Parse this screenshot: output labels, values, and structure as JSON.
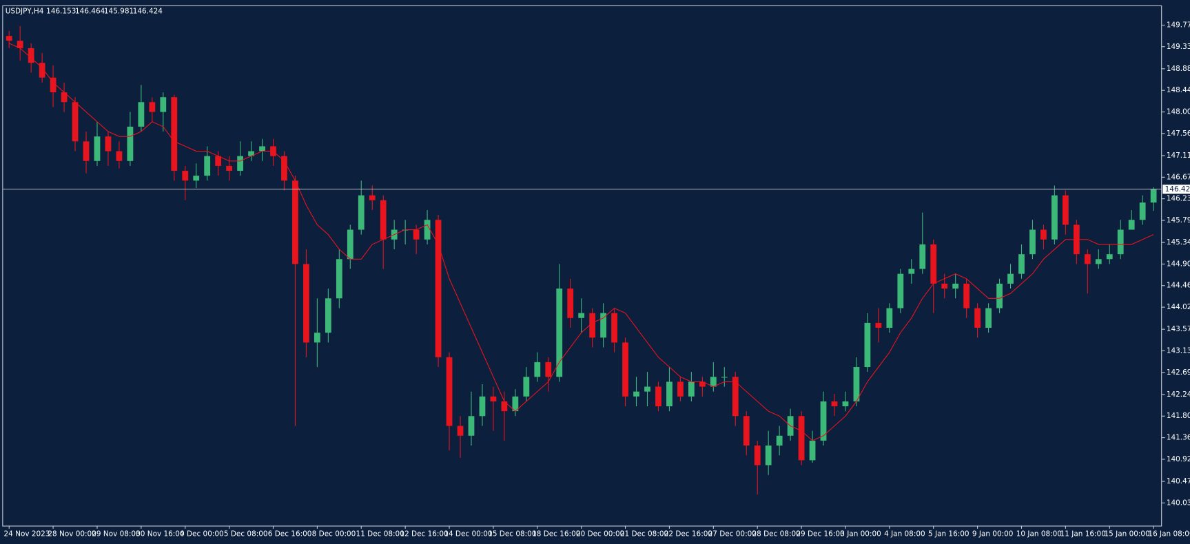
{
  "chart_data": {
    "type": "candlestick",
    "title": "USDJPY,H4",
    "categories": [
      "24 Nov 2023",
      null,
      null,
      null,
      "28 Nov 00:00",
      null,
      null,
      null,
      "29 Nov 08:00",
      null,
      null,
      null,
      "30 Nov 16:00",
      null,
      null,
      null,
      "4 Dec 00:00",
      null,
      null,
      null,
      "5 Dec 08:00",
      null,
      null,
      null,
      "6 Dec 16:00",
      null,
      null,
      null,
      "8 Dec 00:00",
      null,
      null,
      null,
      "11 Dec 08:00",
      null,
      null,
      null,
      "12 Dec 16:00",
      null,
      null,
      null,
      "14 Dec 00:00",
      null,
      null,
      null,
      "15 Dec 08:00",
      null,
      null,
      null,
      "18 Dec 16:00",
      null,
      null,
      null,
      "20 Dec 00:00",
      null,
      null,
      null,
      "21 Dec 08:00",
      null,
      null,
      null,
      "22 Dec 16:00",
      null,
      null,
      null,
      "27 Dec 00:00",
      null,
      null,
      null,
      "28 Dec 08:00",
      null,
      null,
      null,
      "29 Dec 16:00",
      null,
      null,
      null,
      "3 Jan 00:00",
      null,
      null,
      null,
      "4 Jan 08:00",
      null,
      null,
      null,
      "5 Jan 16:00",
      null,
      null,
      null,
      "9 Jan 00:00",
      null,
      null,
      null,
      "10 Jan 08:00",
      null,
      null,
      null,
      "11 Jan 16:00",
      null,
      null,
      null,
      "15 Jan 00:00",
      null,
      null,
      null,
      "16 Jan 08:00"
    ],
    "open": [
      149.55,
      149.45,
      149.3,
      149.0,
      148.7,
      148.4,
      148.2,
      147.4,
      147.0,
      147.5,
      147.2,
      147.0,
      147.7,
      148.2,
      148.0,
      148.3,
      146.8,
      146.6,
      146.7,
      147.1,
      146.9,
      146.8,
      147.1,
      147.2,
      147.3,
      147.1,
      146.6,
      144.9,
      143.3,
      143.5,
      144.2,
      145.0,
      145.6,
      146.3,
      146.2,
      145.4,
      145.6,
      145.6,
      145.4,
      145.8,
      143.0,
      141.6,
      141.4,
      141.8,
      142.2,
      142.1,
      141.9,
      142.2,
      142.6,
      142.9,
      142.6,
      144.4,
      143.8,
      143.9,
      143.4,
      143.9,
      143.3,
      142.2,
      142.3,
      142.4,
      142.0,
      142.5,
      142.2,
      142.5,
      142.4,
      142.6,
      142.6,
      141.8,
      141.2,
      140.8,
      141.2,
      141.4,
      141.8,
      140.9,
      141.3,
      142.1,
      142.0,
      142.1,
      142.8,
      143.7,
      143.6,
      144.0,
      144.7,
      144.8,
      145.3,
      144.5,
      144.4,
      144.5,
      144.0,
      143.6,
      144.0,
      144.5,
      144.7,
      145.1,
      145.6,
      145.4,
      146.3,
      145.7,
      145.1,
      144.9,
      145.0,
      145.1,
      145.6,
      145.8,
      146.153
    ],
    "high": [
      149.65,
      149.75,
      149.4,
      149.2,
      148.95,
      148.6,
      148.3,
      147.6,
      147.8,
      147.6,
      147.4,
      148.0,
      148.55,
      148.3,
      148.4,
      148.35,
      146.9,
      146.95,
      147.3,
      147.2,
      147.1,
      147.4,
      147.4,
      147.45,
      147.45,
      147.2,
      146.7,
      145.2,
      144.2,
      144.4,
      145.2,
      145.7,
      146.6,
      146.5,
      146.3,
      145.8,
      145.8,
      145.7,
      146.0,
      145.9,
      143.1,
      141.8,
      142.3,
      142.45,
      142.4,
      142.3,
      142.35,
      142.8,
      143.1,
      143.0,
      144.9,
      144.6,
      144.2,
      144.0,
      144.1,
      144.0,
      143.4,
      142.6,
      142.7,
      142.5,
      142.8,
      142.6,
      142.7,
      142.6,
      142.9,
      142.8,
      142.7,
      141.9,
      141.3,
      141.5,
      141.6,
      141.95,
      141.9,
      141.5,
      142.3,
      142.25,
      142.3,
      143.0,
      143.9,
      144.0,
      144.1,
      144.8,
      145.0,
      145.95,
      145.4,
      144.7,
      144.7,
      144.6,
      144.1,
      144.1,
      144.6,
      144.9,
      145.3,
      145.8,
      145.7,
      146.5,
      146.4,
      145.8,
      145.2,
      145.2,
      145.3,
      145.8,
      146.0,
      146.3,
      146.464
    ],
    "low": [
      149.3,
      149.05,
      148.8,
      148.6,
      148.1,
      148.0,
      147.2,
      146.75,
      146.9,
      146.9,
      146.85,
      146.9,
      147.6,
      147.8,
      147.6,
      146.6,
      146.2,
      146.45,
      146.6,
      146.7,
      146.6,
      146.7,
      147.0,
      147.0,
      146.9,
      146.4,
      141.6,
      143.0,
      142.8,
      143.3,
      144.0,
      144.8,
      145.5,
      146.0,
      144.8,
      145.2,
      145.3,
      145.1,
      145.3,
      142.8,
      141.1,
      140.95,
      141.2,
      141.6,
      141.5,
      141.3,
      141.8,
      142.1,
      142.5,
      142.3,
      142.5,
      143.6,
      143.5,
      143.2,
      143.2,
      143.1,
      142.0,
      142.0,
      142.0,
      141.9,
      141.9,
      142.1,
      142.1,
      142.2,
      142.3,
      142.4,
      141.6,
      141.0,
      140.2,
      140.6,
      141.0,
      141.3,
      140.8,
      140.85,
      141.2,
      141.8,
      141.9,
      142.0,
      142.7,
      143.3,
      143.5,
      143.9,
      144.5,
      144.7,
      143.9,
      144.2,
      144.2,
      143.8,
      143.4,
      143.5,
      143.9,
      144.4,
      144.6,
      145.0,
      145.2,
      145.3,
      145.5,
      144.9,
      144.3,
      144.8,
      144.9,
      145.0,
      145.6,
      145.7,
      145.981
    ],
    "close": [
      149.45,
      149.3,
      149.0,
      148.7,
      148.4,
      148.2,
      147.4,
      147.0,
      147.5,
      147.2,
      147.0,
      147.7,
      148.2,
      148.0,
      148.3,
      146.8,
      146.6,
      146.7,
      147.1,
      146.9,
      146.8,
      147.1,
      147.2,
      147.3,
      147.1,
      146.6,
      144.9,
      143.3,
      143.5,
      144.2,
      145.0,
      145.6,
      146.3,
      146.2,
      145.4,
      145.6,
      145.6,
      145.4,
      145.8,
      143.0,
      141.6,
      141.4,
      141.8,
      142.2,
      142.1,
      141.9,
      142.2,
      142.6,
      142.9,
      142.6,
      144.4,
      143.8,
      143.9,
      143.4,
      143.9,
      143.3,
      142.2,
      142.3,
      142.4,
      142.0,
      142.5,
      142.2,
      142.5,
      142.4,
      142.6,
      142.6,
      141.8,
      141.2,
      140.8,
      141.2,
      141.4,
      141.8,
      140.9,
      141.3,
      142.1,
      142.0,
      142.1,
      142.8,
      143.7,
      143.6,
      144.0,
      144.7,
      144.8,
      145.3,
      144.5,
      144.4,
      144.5,
      144.0,
      143.6,
      144.0,
      144.5,
      144.7,
      145.1,
      145.6,
      145.4,
      146.3,
      145.7,
      145.1,
      144.9,
      145.0,
      145.1,
      145.6,
      145.8,
      146.153,
      146.424
    ],
    "up_color": "#3cb878",
    "down_color": "#e8141e",
    "ma": {
      "color": "#e8141e",
      "values": [
        149.4,
        149.3,
        149.1,
        148.9,
        148.6,
        148.4,
        148.2,
        148.0,
        147.8,
        147.6,
        147.5,
        147.5,
        147.6,
        147.8,
        147.7,
        147.4,
        147.3,
        147.2,
        147.2,
        147.1,
        147.0,
        147.0,
        147.1,
        147.2,
        147.2,
        147.0,
        146.6,
        146.1,
        145.7,
        145.5,
        145.2,
        145.0,
        145.0,
        145.3,
        145.4,
        145.5,
        145.6,
        145.6,
        145.7,
        145.3,
        144.6,
        144.1,
        143.6,
        143.1,
        142.6,
        142.1,
        141.9,
        142.1,
        142.3,
        142.5,
        142.9,
        143.2,
        143.5,
        143.7,
        143.8,
        144.0,
        143.9,
        143.6,
        143.3,
        143.0,
        142.8,
        142.6,
        142.5,
        142.5,
        142.4,
        142.5,
        142.5,
        142.3,
        142.1,
        141.9,
        141.8,
        141.6,
        141.5,
        141.3,
        141.4,
        141.6,
        141.8,
        142.1,
        142.5,
        142.8,
        143.1,
        143.5,
        143.8,
        144.2,
        144.5,
        144.6,
        144.7,
        144.6,
        144.4,
        144.2,
        144.2,
        144.3,
        144.5,
        144.7,
        145.0,
        145.2,
        145.4,
        145.4,
        145.4,
        145.3,
        145.3,
        145.3,
        145.3,
        145.4,
        145.5
      ]
    },
    "ylim": [
      139.566,
      150.156
    ],
    "yticks": [
      {
        "value": 149.77,
        "label": "149.770"
      },
      {
        "value": 149.33,
        "label": "149.330"
      },
      {
        "value": 148.88,
        "label": "148.880"
      },
      {
        "value": 148.44,
        "label": "148.440"
      },
      {
        "value": 148.0,
        "label": "148.000"
      },
      {
        "value": 147.56,
        "label": "147.560"
      },
      {
        "value": 147.11,
        "label": "147.110"
      },
      {
        "value": 146.67,
        "label": "146.670"
      },
      {
        "value": 146.23,
        "label": "146.230"
      },
      {
        "value": 145.79,
        "label": "145.790"
      },
      {
        "value": 145.34,
        "label": "145.340"
      },
      {
        "value": 144.9,
        "label": "144.900"
      },
      {
        "value": 144.46,
        "label": "144.460"
      },
      {
        "value": 144.02,
        "label": "144.020"
      },
      {
        "value": 143.57,
        "label": "143.570"
      },
      {
        "value": 143.13,
        "label": "143.130"
      },
      {
        "value": 142.69,
        "label": "142.690"
      },
      {
        "value": 142.24,
        "label": "142.240"
      },
      {
        "value": 141.8,
        "label": "141.800"
      },
      {
        "value": 141.36,
        "label": "141.360"
      },
      {
        "value": 140.92,
        "label": "140.920"
      },
      {
        "value": 140.47,
        "label": "140.470"
      },
      {
        "value": 140.03,
        "label": "140.030"
      }
    ],
    "grid": false
  }
}
